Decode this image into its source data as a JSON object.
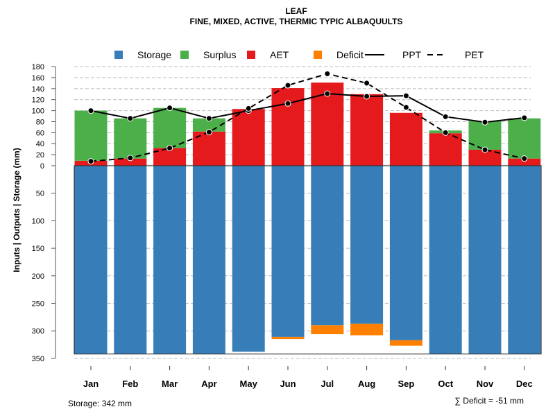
{
  "chart_data": {
    "type": "bar",
    "title": "LEAF",
    "subtitle": "FINE, MIXED, ACTIVE, THERMIC TYPIC ALBAQUULTS",
    "ylabel": "Inputs | Outputs | Storage    (mm)",
    "categories": [
      "Jan",
      "Feb",
      "Mar",
      "Apr",
      "May",
      "Jun",
      "Jul",
      "Aug",
      "Sep",
      "Oct",
      "Nov",
      "Dec"
    ],
    "legend": [
      "Storage",
      "Surplus",
      "AET",
      "Deficit",
      "PPT",
      "PET"
    ],
    "legend_position": "top",
    "colors": {
      "Storage": "#377EB8",
      "Surplus": "#4DAF4A",
      "AET": "#E41A1C",
      "Deficit": "#FF7F00",
      "line": "#000000"
    },
    "upper_ticks": [
      0,
      20,
      40,
      60,
      80,
      100,
      120,
      140,
      160,
      180
    ],
    "lower_ticks": [
      0,
      50,
      100,
      150,
      200,
      250,
      300,
      350
    ],
    "ylim_upper": [
      0,
      180
    ],
    "ylim_lower": [
      0,
      350
    ],
    "series": [
      {
        "name": "AET",
        "values": [
          9,
          13,
          32,
          62,
          103,
          141,
          151,
          130,
          96,
          59,
          29,
          13
        ]
      },
      {
        "name": "Surplus",
        "values": [
          91,
          73,
          73,
          24,
          0,
          0,
          0,
          0,
          0,
          5,
          52,
          73
        ]
      },
      {
        "name": "Storage",
        "values": [
          342,
          342,
          342,
          342,
          338,
          311,
          290,
          287,
          317,
          342,
          342,
          342
        ]
      },
      {
        "name": "Deficit",
        "values": [
          0,
          0,
          0,
          0,
          0,
          4,
          16,
          21,
          10,
          0,
          0,
          0
        ]
      },
      {
        "name": "PPT",
        "values": [
          100,
          86,
          105,
          86,
          100,
          113,
          131,
          126,
          127,
          89,
          79,
          87
        ]
      },
      {
        "name": "PET",
        "values": [
          8,
          14,
          32,
          61,
          104,
          146,
          167,
          150,
          106,
          60,
          29,
          13
        ]
      }
    ],
    "annotations": {
      "storage": "Storage: 342 mm",
      "deficit": "∑ Deficit = -51 mm"
    }
  }
}
